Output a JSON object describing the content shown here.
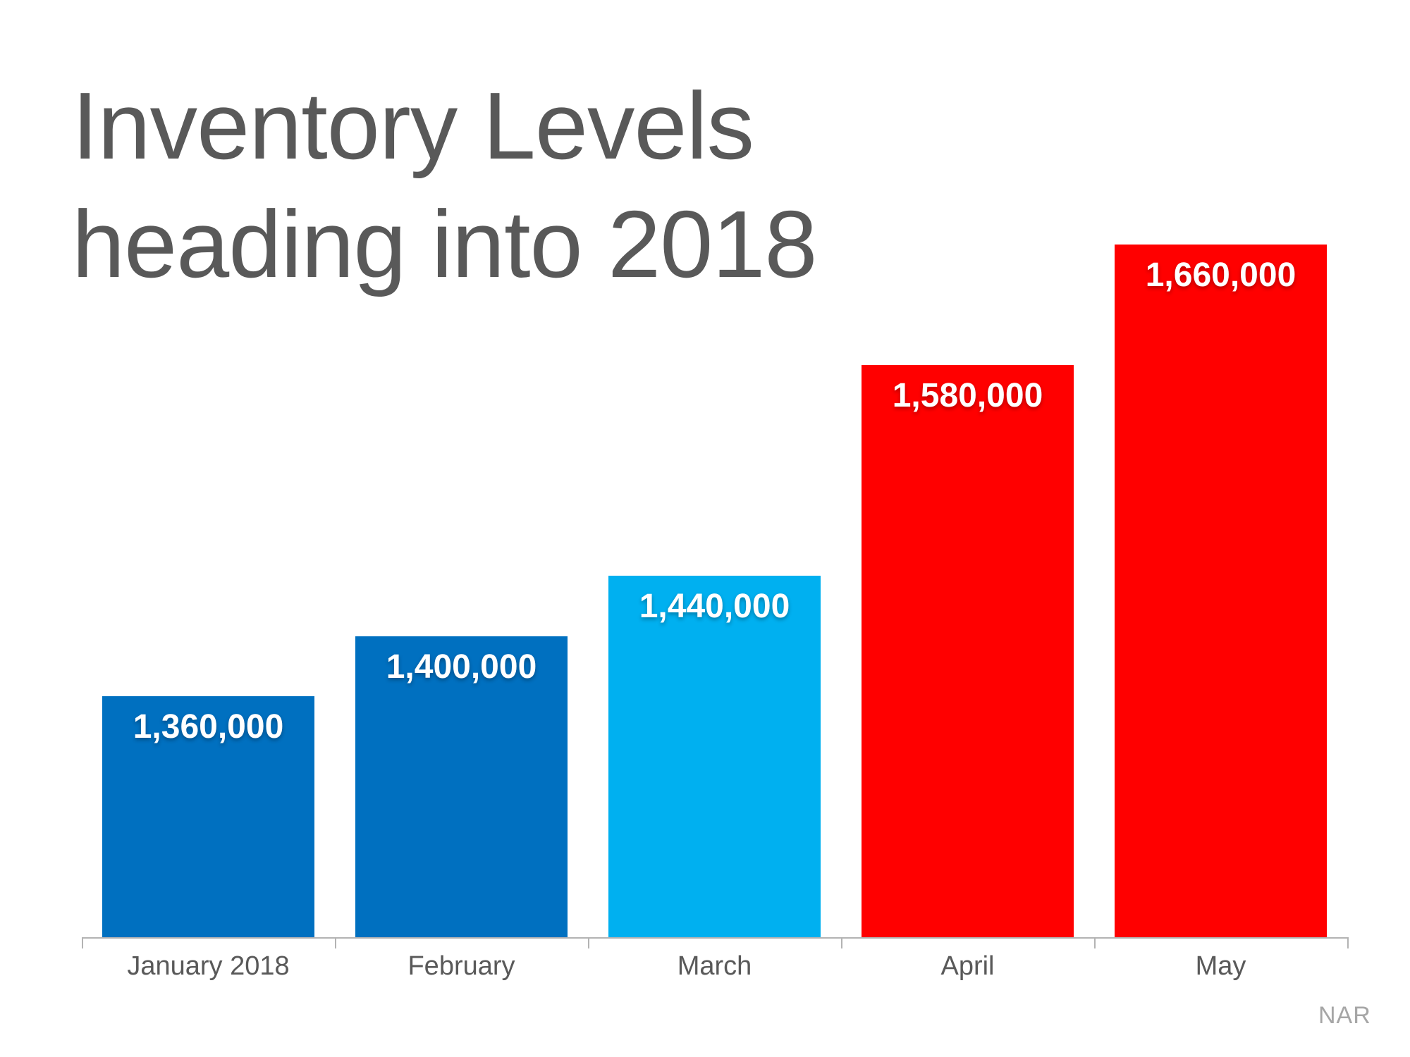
{
  "page": {
    "background": "#FFFFFF"
  },
  "title": {
    "line1": "Inventory Levels",
    "line2": "heading into 2018",
    "color": "#595959"
  },
  "source": {
    "label": "NAR",
    "color": "#A6A6A6"
  },
  "chart_data": {
    "type": "bar",
    "title": "Inventory Levels heading into 2018",
    "categories": [
      "January 2018",
      "February",
      "March",
      "April",
      "May"
    ],
    "values": [
      1360000,
      1400000,
      1440000,
      1580000,
      1660000
    ],
    "value_labels": [
      "1,360,000",
      "1,400,000",
      "1,440,000",
      "1,580,000",
      "1,660,000"
    ],
    "bar_colors": [
      "#0070C0",
      "#0070C0",
      "#00B0F0",
      "#FF0000",
      "#FF0000"
    ],
    "value_label_color": "#FFFFFF",
    "value_label_position": "inside-end",
    "xlabel": "",
    "ylabel": "",
    "ylim": [
      1200000,
      1700000
    ],
    "y_axis_visible": false,
    "grid": false,
    "legend": false,
    "axis_color": "#B3B3B3",
    "tick_label_color": "#595959"
  }
}
